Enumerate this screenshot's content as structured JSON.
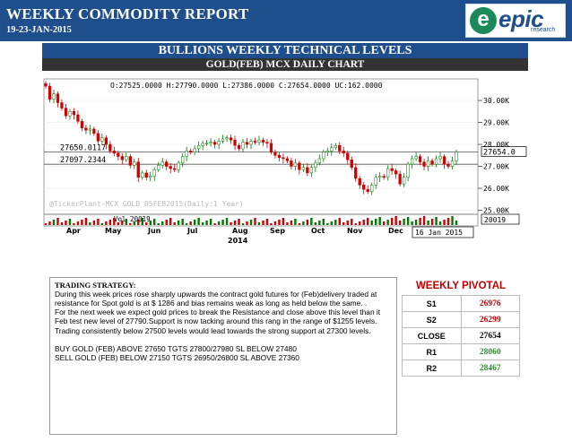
{
  "header": {
    "title": "WEEKLY COMMODITY REPORT",
    "date": "19-23-JAN-2015",
    "logo_text": "epic",
    "logo_sub": "research"
  },
  "banner": "BULLIONS WEEKLY TECHNICAL LEVELS",
  "subbanner": "GOLD(FEB) MCX DAILY CHART",
  "chart_data": {
    "type": "candlestick",
    "ohlc_line": "O:27525.0000  H:27790.0000  L:27386.0000  C:27654.0000  UC:162.0000",
    "watermark": "@TickerPlant-MCX GOLD 05FEB2015(Daily:1 Year)",
    "volume_label": "Vol 20019",
    "volume_value": "20019",
    "last_value": "27654.0",
    "h_levels": [
      {
        "label": "27650.0117",
        "value": 27650.0117
      },
      {
        "label": "27097.2344",
        "value": 27097.2344
      }
    ],
    "ylim": [
      24900,
      30900
    ],
    "y_ticks": [
      {
        "label": "30.00K",
        "value": 30000
      },
      {
        "label": "29.00K",
        "value": 29000
      },
      {
        "label": "28.00K",
        "value": 28000
      },
      {
        "label": "27.00K",
        "value": 27000
      },
      {
        "label": "26.00K",
        "value": 26000
      },
      {
        "label": "25.00K",
        "value": 25000
      }
    ],
    "x_ticks": [
      "Apr",
      "May",
      "Jun",
      "Jul",
      "Aug",
      "Sep",
      "Oct",
      "Nov",
      "Dec"
    ],
    "x_year": "2014",
    "date_badge": "16 Jan 2015",
    "close_series": [
      30650,
      30050,
      30300,
      29900,
      29650,
      29300,
      29500,
      29350,
      29050,
      28750,
      28650,
      28700,
      28500,
      28150,
      28300,
      28000,
      27700,
      27600,
      27450,
      27300,
      27450,
      27050,
      27200,
      26500,
      26700,
      26500,
      26550,
      26850,
      27050,
      27200,
      27000,
      26900,
      26850,
      27150,
      27450,
      27700,
      27650,
      27800,
      27950,
      28050,
      28050,
      28100,
      28000,
      28150,
      28250,
      28300,
      28200,
      27950,
      27800,
      28100,
      28000,
      28150,
      28100,
      28200,
      28100,
      28050,
      27650,
      27500,
      27400,
      27350,
      27250,
      27000,
      27150,
      26850,
      26950,
      26700,
      26950,
      27150,
      27350,
      27650,
      27700,
      27850,
      27950,
      27700,
      27600,
      27300,
      26950,
      26450,
      26150,
      25950,
      25850,
      26150,
      26500,
      26550,
      26500,
      26900,
      26800,
      26650,
      26200,
      26500,
      27100,
      27350,
      27450,
      27200,
      27000,
      27250,
      27100,
      27350,
      27450,
      27100,
      27000,
      27250,
      27650
    ]
  },
  "strategy": {
    "heading": "TRADING STRATEGY:",
    "p1": "During this week prices rose sharply upwards the contract gold futures for (Feb)delivery traded at resistance for Spot gold is at $ 1286 and bias remains weak as long as held below the same. .",
    "p2": "For the next week we expect gold prices to break the Resistance and close above this level than it Feb test new level of 27790.Support is now tacking around this rang in the range of $1255 levels. Trading consistently below 27500 levels would lead towards the strong support at 27300 levels.",
    "buy": "BUY GOLD (FEB) ABOVE 27650 TGTS 27800/27980 SL BELOW 27480",
    "sell": "SELL GOLD (FEB) BELOW  27150 TGTS 26950/26800 SL ABOVE 27360"
  },
  "pivotal": {
    "title": "WEEKLY PIVOTAL",
    "rows": [
      {
        "label": "S1",
        "value": "26976",
        "color": "#c00000"
      },
      {
        "label": "S2",
        "value": "26299",
        "color": "#c00000"
      },
      {
        "label": "CLOSE",
        "value": "27654",
        "color": "#000000"
      },
      {
        "label": "R1",
        "value": "28060",
        "color": "#2e8b2e"
      },
      {
        "label": "R2",
        "value": "28467",
        "color": "#2e8b2e"
      }
    ]
  }
}
